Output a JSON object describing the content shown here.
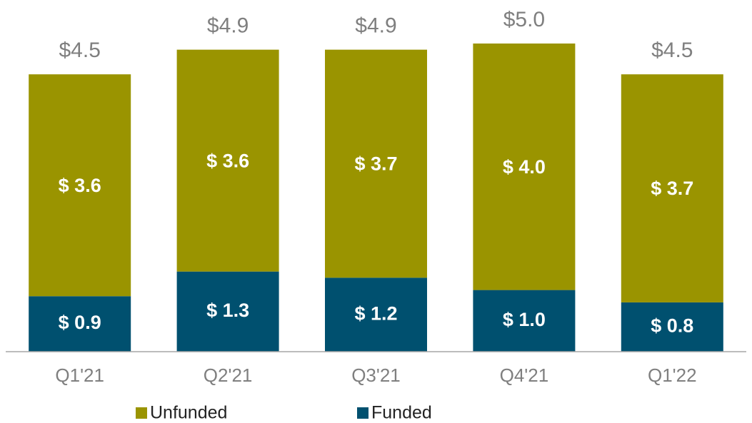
{
  "chart_data": {
    "type": "stacked_bar",
    "categories": [
      "Q1'21",
      "Q2'21",
      "Q3'21",
      "Q4'21",
      "Q1'22"
    ],
    "series": [
      {
        "name": "Unfunded",
        "color": "#9a9400",
        "values": [
          3.6,
          3.6,
          3.7,
          4.0,
          3.7
        ],
        "value_labels": [
          "$ 3.6",
          "$ 3.6",
          "$ 3.7",
          "$ 4.0",
          "$ 3.7"
        ]
      },
      {
        "name": "Funded",
        "color": "#00506f",
        "values": [
          0.9,
          1.3,
          1.2,
          1.0,
          0.8
        ],
        "value_labels": [
          "$ 0.9",
          "$ 1.3",
          "$ 1.2",
          "$ 1.0",
          "$ 0.8"
        ]
      }
    ],
    "totals": [
      4.5,
      4.9,
      4.9,
      5.0,
      4.5
    ],
    "total_labels": [
      "$4.5",
      "$4.9",
      "$4.9",
      "$5.0",
      "$4.5"
    ]
  }
}
